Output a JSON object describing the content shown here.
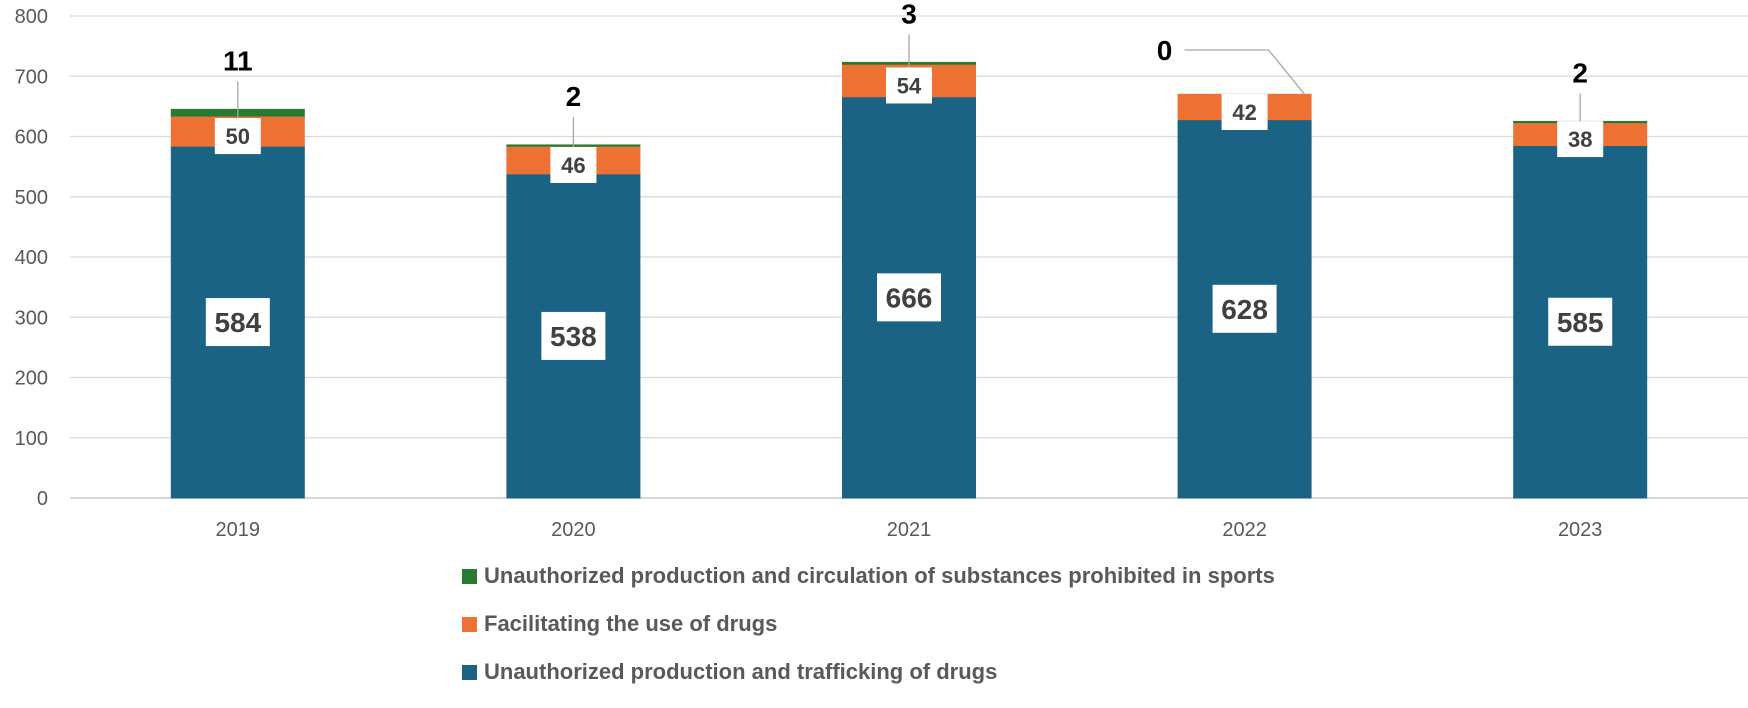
{
  "chart_data": {
    "type": "bar",
    "stacked": true,
    "categories": [
      "2019",
      "2020",
      "2021",
      "2022",
      "2023"
    ],
    "ylim": [
      0,
      800
    ],
    "yticks": [
      0,
      100,
      200,
      300,
      400,
      500,
      600,
      700,
      800
    ],
    "grid": true,
    "legend_position": "bottom",
    "series": [
      {
        "name": "Unauthorized production and trafficking of drugs",
        "color": "#1a6384",
        "values": [
          584,
          538,
          666,
          628,
          585
        ],
        "labels": [
          "584",
          "538",
          "666",
          "628",
          "585"
        ]
      },
      {
        "name": "Facilitating the use of drugs",
        "color": "#ec7133",
        "values": [
          50,
          46,
          54,
          42,
          38
        ],
        "labels": [
          "50",
          "46",
          "54",
          "42",
          "38"
        ]
      },
      {
        "name": "Unauthorized production and circulation of substances prohibited in sports",
        "color": "#287a33",
        "values": [
          11,
          2,
          3,
          0,
          2
        ],
        "labels": [
          "11",
          "2",
          "3",
          "0",
          "2"
        ]
      }
    ]
  },
  "legend": {
    "items": [
      {
        "label": "Unauthorized production and circulation of substances prohibited in sports",
        "color": "#287a33"
      },
      {
        "label": "Facilitating the use of drugs",
        "color": "#ec7133"
      },
      {
        "label": "Unauthorized production and trafficking of drugs",
        "color": "#1a6384"
      }
    ]
  }
}
